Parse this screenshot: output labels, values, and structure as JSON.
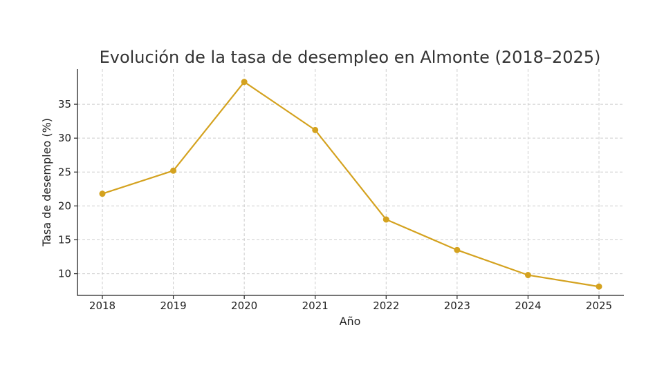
{
  "chart_data": {
    "type": "line",
    "title": "Evolución de la tasa de desempleo en Almonte (2018–2025)",
    "xlabel": "Año",
    "ylabel": "Tasa de desempleo (%)",
    "categories": [
      "2018",
      "2019",
      "2020",
      "2021",
      "2022",
      "2023",
      "2024",
      "2025"
    ],
    "series": [
      {
        "values": [
          21.8,
          25.2,
          38.3,
          31.2,
          18.0,
          13.5,
          9.8,
          8.1
        ]
      }
    ],
    "ylim": [
      6.8,
      40.2
    ],
    "yticks": [
      10,
      15,
      20,
      25,
      30,
      35
    ],
    "grid": true,
    "colors": {
      "line": "#D4A21F",
      "grid": "#cccccc",
      "axis": "#222222"
    }
  }
}
